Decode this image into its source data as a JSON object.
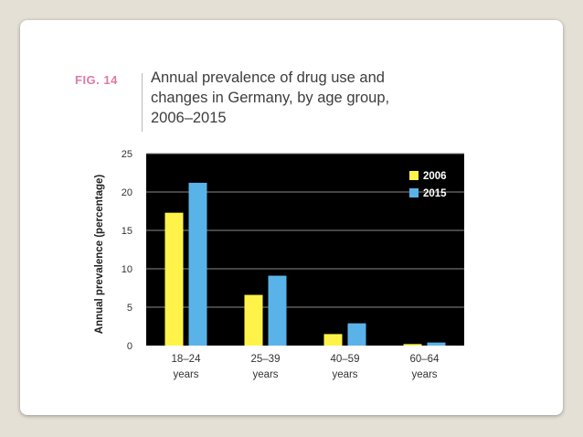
{
  "figure": {
    "label": "FIG. 14",
    "title_lines": [
      "Annual prevalence of drug use and",
      "changes in Germany, by age group,",
      "2006–2015"
    ]
  },
  "chart_data": {
    "type": "bar",
    "categories": [
      [
        "18–24",
        "years"
      ],
      [
        "25–39",
        "years"
      ],
      [
        "40–59",
        "years"
      ],
      [
        "60–64",
        "years"
      ]
    ],
    "series": [
      {
        "name": "2006",
        "values": [
          17.3,
          6.6,
          1.5,
          0.2
        ],
        "color": "#fff34a"
      },
      {
        "name": "2015",
        "values": [
          21.2,
          9.1,
          2.9,
          0.4
        ],
        "color": "#5ab3e8"
      }
    ],
    "ylabel": "Annual prevalence (percentage)",
    "ylim": [
      0,
      25
    ],
    "yticks": [
      0,
      5,
      10,
      15,
      20,
      25
    ],
    "grid": true,
    "legend_position": "top-right",
    "plot_background": "#000000",
    "grid_color": "#8a8a8a"
  }
}
